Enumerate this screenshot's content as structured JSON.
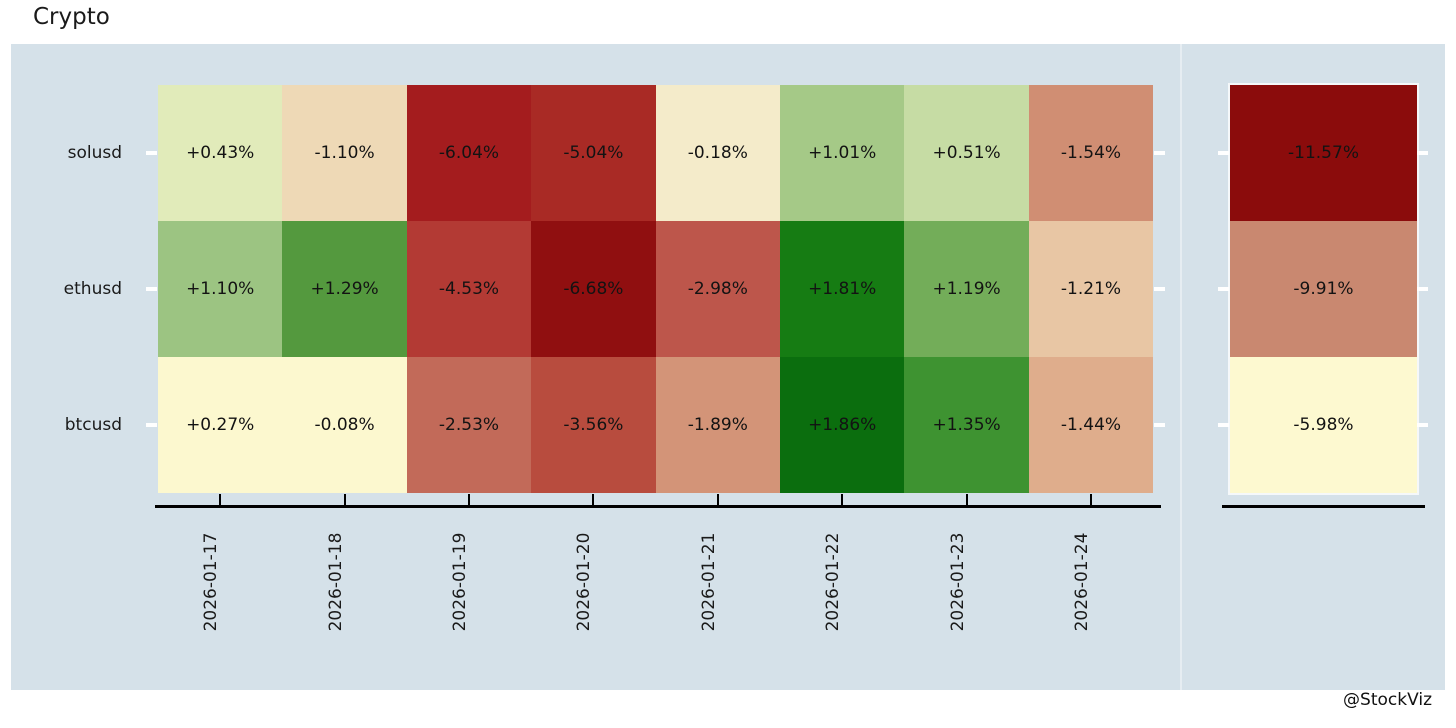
{
  "title": "Crypto",
  "watermark": "@StockViz",
  "colors": {
    "panel_bg": "#d5e1e9",
    "axis_line": "#000000",
    "tick_mark_inner": "#ffffff",
    "text": "#1a1a1a"
  },
  "chart_data": {
    "type": "heatmap",
    "title": "Crypto",
    "rows": [
      "solusd",
      "ethusd",
      "btcusd"
    ],
    "columns": [
      "2026-01-17",
      "2026-01-18",
      "2026-01-19",
      "2026-01-20",
      "2026-01-21",
      "2026-01-22",
      "2026-01-23",
      "2026-01-24"
    ],
    "series": [
      {
        "name": "solusd",
        "values": [
          0.43,
          -1.1,
          -6.04,
          -5.04,
          -0.18,
          1.01,
          0.51,
          -1.54
        ],
        "labels": [
          "+0.43%",
          "-1.10%",
          "-6.04%",
          "-5.04%",
          "-0.18%",
          "+1.01%",
          "+0.51%",
          "-1.54%"
        ],
        "cell_colors": [
          "#e1ebba",
          "#eed9b6",
          "#a41c1e",
          "#a92a25",
          "#f4ebca",
          "#a5c987",
          "#c6dca4",
          "#d08e73"
        ]
      },
      {
        "name": "ethusd",
        "values": [
          1.1,
          1.29,
          -4.53,
          -6.68,
          -2.98,
          1.81,
          1.19,
          -1.21
        ],
        "labels": [
          "+1.10%",
          "+1.29%",
          "-4.53%",
          "-6.68%",
          "-2.98%",
          "+1.81%",
          "+1.19%",
          "-1.21%"
        ],
        "cell_colors": [
          "#9cc482",
          "#54993e",
          "#b33a34",
          "#900f10",
          "#bd564b",
          "#167c13",
          "#73ad59",
          "#e8c6a4"
        ]
      },
      {
        "name": "btcusd",
        "values": [
          0.27,
          -0.08,
          -2.53,
          -3.56,
          -1.89,
          1.86,
          1.35,
          -1.44
        ],
        "labels": [
          "+0.27%",
          "-0.08%",
          "-2.53%",
          "-3.56%",
          "-1.89%",
          "+1.86%",
          "+1.35%",
          "-1.44%"
        ],
        "cell_colors": [
          "#fcf8cf",
          "#fcf8cf",
          "#c26a59",
          "#b84c3e",
          "#d39478",
          "#0b6e0e",
          "#3e9331",
          "#dfad8c"
        ]
      }
    ],
    "totals": {
      "values": [
        -11.57,
        -9.91,
        -5.98
      ],
      "labels": [
        "-11.57%",
        "-9.91%",
        "-5.98%"
      ],
      "cell_colors": [
        "#8b0c0c",
        "#c98870",
        "#fdf9d0"
      ]
    },
    "value_format": "percent",
    "grid": false,
    "legend": false
  }
}
